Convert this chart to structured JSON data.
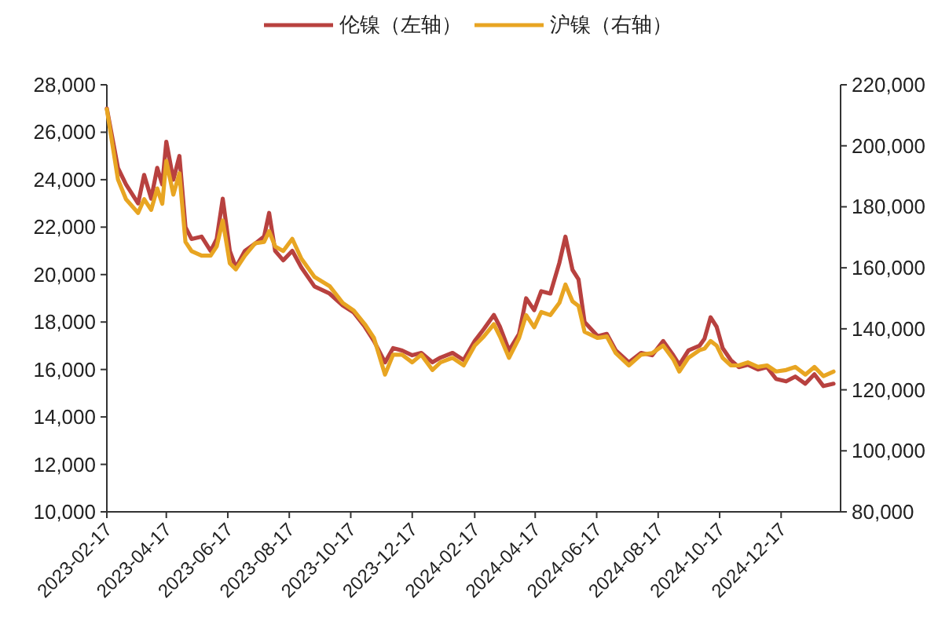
{
  "chart_data": {
    "type": "line",
    "legend": "top",
    "marker": "none",
    "line_style": "solid",
    "xlim": [
      "2023-02-17",
      "2025-02-14"
    ],
    "xticks": [
      "2023-02-17",
      "2023-04-17",
      "2023-06-17",
      "2023-08-17",
      "2023-10-17",
      "2023-12-17",
      "2024-02-17",
      "2024-04-17",
      "2024-06-17",
      "2024-08-17",
      "2024-10-17",
      "2024-12-17"
    ],
    "ylim": [
      10000,
      28000
    ],
    "yticks": [
      {
        "value": 10000,
        "label": "10,000"
      },
      {
        "value": 12000,
        "label": "12,000"
      },
      {
        "value": 14000,
        "label": "14,000"
      },
      {
        "value": 16000,
        "label": "16,000"
      },
      {
        "value": 18000,
        "label": "18,000"
      },
      {
        "value": 20000,
        "label": "20,000"
      },
      {
        "value": 22000,
        "label": "22,000"
      },
      {
        "value": 24000,
        "label": "24,000"
      },
      {
        "value": 26000,
        "label": "26,000"
      },
      {
        "value": 28000,
        "label": "28,000"
      }
    ],
    "y2lim": [
      80000,
      220000
    ],
    "y2ticks": [
      {
        "value": 80000,
        "label": "80,000"
      },
      {
        "value": 100000,
        "label": "100,000"
      },
      {
        "value": 120000,
        "label": "120,000"
      },
      {
        "value": 140000,
        "label": "140,000"
      },
      {
        "value": 160000,
        "label": "160,000"
      },
      {
        "value": 180000,
        "label": "180,000"
      },
      {
        "value": 200000,
        "label": "200,000"
      },
      {
        "value": 220000,
        "label": "220,000"
      }
    ],
    "x": [
      "2023-02-17",
      "2023-02-28",
      "2023-03-08",
      "2023-03-20",
      "2023-03-26",
      "2023-04-02",
      "2023-04-08",
      "2023-04-13",
      "2023-04-17",
      "2023-04-24",
      "2023-04-30",
      "2023-05-06",
      "2023-05-12",
      "2023-05-22",
      "2023-05-31",
      "2023-06-06",
      "2023-06-12",
      "2023-06-19",
      "2023-06-25",
      "2023-07-04",
      "2023-07-14",
      "2023-07-23",
      "2023-07-28",
      "2023-08-03",
      "2023-08-11",
      "2023-08-20",
      "2023-08-29",
      "2023-09-11",
      "2023-09-26",
      "2023-10-09",
      "2023-10-20",
      "2023-10-31",
      "2023-11-09",
      "2023-11-20",
      "2023-11-28",
      "2023-12-07",
      "2023-12-17",
      "2023-12-26",
      "2024-01-06",
      "2024-01-14",
      "2024-01-26",
      "2024-02-06",
      "2024-02-17",
      "2024-02-26",
      "2024-03-07",
      "2024-03-13",
      "2024-03-22",
      "2024-04-01",
      "2024-04-08",
      "2024-04-16",
      "2024-04-23",
      "2024-05-02",
      "2024-05-11",
      "2024-05-17",
      "2024-05-24",
      "2024-05-30",
      "2024-06-05",
      "2024-06-18",
      "2024-06-27",
      "2024-07-06",
      "2024-07-19",
      "2024-07-31",
      "2024-08-11",
      "2024-08-22",
      "2024-09-01",
      "2024-09-07",
      "2024-09-16",
      "2024-09-27",
      "2024-10-02",
      "2024-10-08",
      "2024-10-14",
      "2024-10-20",
      "2024-10-28",
      "2024-11-05",
      "2024-11-14",
      "2024-11-24",
      "2024-12-03",
      "2024-12-12",
      "2024-12-22",
      "2024-12-31",
      "2025-01-10",
      "2025-01-19",
      "2025-01-28",
      "2025-02-07"
    ],
    "series": [
      {
        "name": "伦镍（左轴）",
        "color": "#b8413f",
        "axis": "y",
        "values": [
          27000,
          24500,
          23800,
          23000,
          24200,
          23200,
          24500,
          23800,
          25600,
          24000,
          25000,
          22000,
          21500,
          21600,
          21000,
          21500,
          23200,
          21000,
          20300,
          21000,
          21300,
          21600,
          22600,
          21000,
          20600,
          21000,
          20300,
          19500,
          19200,
          18700,
          18400,
          17800,
          17200,
          16300,
          16900,
          16800,
          16600,
          16700,
          16300,
          16500,
          16700,
          16400,
          17200,
          17700,
          18300,
          17800,
          16800,
          17500,
          19000,
          18500,
          19300,
          19200,
          20500,
          21600,
          20200,
          19800,
          18000,
          17400,
          17500,
          16800,
          16300,
          16700,
          16600,
          17200,
          16600,
          16200,
          16800,
          17000,
          17300,
          18200,
          17800,
          16900,
          16400,
          16100,
          16200,
          16000,
          16100,
          15600,
          15500,
          15700,
          15400,
          15800,
          15300,
          15400
        ]
      },
      {
        "name": "沪镍（右轴）",
        "color": "#e8a522",
        "axis": "y2",
        "values": [
          212000,
          189000,
          182500,
          178000,
          182500,
          179000,
          186000,
          181000,
          195000,
          184000,
          191000,
          168500,
          165500,
          164000,
          164000,
          167000,
          175500,
          161500,
          159500,
          164000,
          168000,
          168500,
          172000,
          167000,
          165500,
          169500,
          163000,
          157000,
          154000,
          148500,
          146000,
          141500,
          137000,
          125000,
          131500,
          131500,
          129000,
          131500,
          126500,
          129000,
          130500,
          128000,
          134500,
          137500,
          141500,
          137500,
          130500,
          137000,
          144500,
          140500,
          145500,
          144500,
          148500,
          154500,
          149000,
          147500,
          139000,
          137000,
          137500,
          132000,
          128000,
          131500,
          132000,
          134500,
          130000,
          126000,
          130500,
          133000,
          133500,
          136000,
          134500,
          130500,
          128000,
          128000,
          129000,
          127500,
          128000,
          126000,
          126500,
          127500,
          125000,
          127500,
          124500,
          126000
        ]
      }
    ]
  }
}
